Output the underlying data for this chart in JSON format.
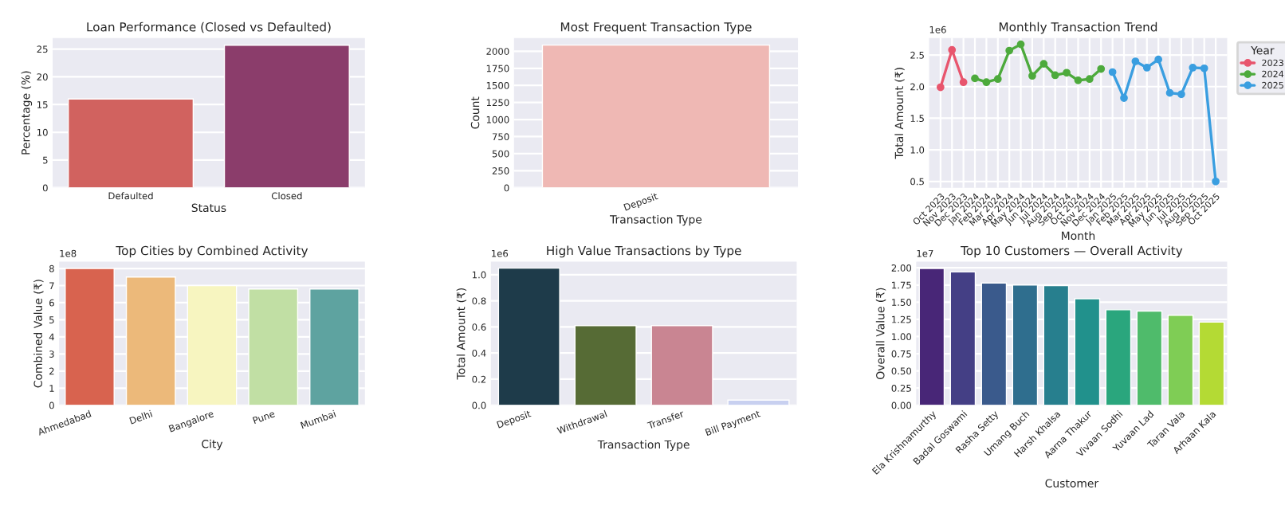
{
  "chart_data": [
    {
      "type": "bar",
      "title": "Loan Performance (Closed vs Defaulted)",
      "xlabel": "Status",
      "ylabel": "Percentage (%)",
      "categories": [
        "Defaulted",
        "Closed"
      ],
      "values": [
        16.0,
        25.7
      ],
      "colors": [
        "#d1625f",
        "#8b3d6b"
      ],
      "ylim": [
        0,
        27
      ],
      "yticks": [
        0,
        5,
        10,
        15,
        20,
        25
      ],
      "grid": "y"
    },
    {
      "type": "bar",
      "title": "Most Frequent Transaction Type",
      "xlabel": "Transaction Type",
      "ylabel": "Count",
      "categories": [
        "Deposit"
      ],
      "values": [
        2090
      ],
      "colors": [
        "#efb8b4"
      ],
      "ylim": [
        0,
        2195
      ],
      "yticks": [
        0,
        250,
        500,
        750,
        1000,
        1250,
        1500,
        1750,
        2000
      ],
      "grid": "y"
    },
    {
      "type": "line",
      "title": "Monthly Transaction Trend",
      "xlabel": "Month",
      "ylabel": "Total Amount (₹)",
      "annotations": [
        "1e6"
      ],
      "legend_title": "Year",
      "legend": "top right",
      "marker": "circle",
      "line_style": "solid",
      "grid": true,
      "categories": [
        "Oct 2023",
        "Nov 2023",
        "Dec 2023",
        "Jan 2024",
        "Feb 2024",
        "Mar 2024",
        "Apr 2024",
        "May 2024",
        "Jun 2024",
        "Jul 2024",
        "Aug 2024",
        "Sep 2024",
        "Oct 2024",
        "Nov 2024",
        "Dec 2024",
        "Jan 2025",
        "Feb 2025",
        "Mar 2025",
        "Apr 2025",
        "May 2025",
        "Jun 2025",
        "Jul 2025",
        "Aug 2025",
        "Sep 2025",
        "Oct 2025"
      ],
      "series": [
        {
          "name": "2023",
          "color": "#e8556d",
          "values": [
            1.99,
            2.58,
            2.07,
            null,
            null,
            null,
            null,
            null,
            null,
            null,
            null,
            null,
            null,
            null,
            null,
            null,
            null,
            null,
            null,
            null,
            null,
            null,
            null,
            null,
            null
          ]
        },
        {
          "name": "2024",
          "color": "#4daa3c",
          "values": [
            null,
            null,
            null,
            2.13,
            2.07,
            2.12,
            2.57,
            2.67,
            2.17,
            2.36,
            2.18,
            2.22,
            2.1,
            2.12,
            2.28,
            null,
            null,
            null,
            null,
            null,
            null,
            null,
            null,
            null,
            null
          ]
        },
        {
          "name": "2025",
          "color": "#3a9ee0",
          "values": [
            null,
            null,
            null,
            null,
            null,
            null,
            null,
            null,
            null,
            null,
            null,
            null,
            null,
            null,
            null,
            2.23,
            1.82,
            2.4,
            2.3,
            2.43,
            1.9,
            1.88,
            2.3,
            2.29,
            0.5
          ]
        }
      ],
      "ylim": [
        0.4,
        2.77
      ],
      "yticks": [
        {
          "value": 0.5,
          "label": "0.5"
        },
        {
          "value": 1.0,
          "label": "1.0"
        },
        {
          "value": 1.5,
          "label": "1.5"
        },
        {
          "value": 2.0,
          "label": "2.0"
        },
        {
          "value": 2.5,
          "label": "2.5"
        }
      ]
    },
    {
      "type": "bar",
      "title": "Top Cities by Combined Activity",
      "xlabel": "City",
      "ylabel": "Combined Value (₹)",
      "annotations": [
        "1e8"
      ],
      "categories": [
        "Ahmedabad",
        "Delhi",
        "Bangalore",
        "Pune",
        "Mumbai"
      ],
      "values": [
        8.0,
        7.5,
        7.0,
        6.8,
        6.8
      ],
      "colors": [
        "#d8634f",
        "#ecb97a",
        "#f7f5c0",
        "#c1dfa4",
        "#5ea3a0"
      ],
      "ylim": [
        0,
        8.4
      ],
      "yticks": [
        0,
        1,
        2,
        3,
        4,
        5,
        6,
        7,
        8
      ],
      "grid": "y"
    },
    {
      "type": "bar",
      "title": "High Value Transactions by Type",
      "xlabel": "Transaction Type",
      "ylabel": "Total Amount (₹)",
      "annotations": [
        "1e6"
      ],
      "categories": [
        "Deposit",
        "Withdrawal",
        "Transfer",
        "Bill Payment"
      ],
      "values": [
        1.05,
        0.61,
        0.61,
        0.04
      ],
      "colors": [
        "#1e3b4a",
        "#566b35",
        "#c98592",
        "#c8d0f0"
      ],
      "ylim": [
        0,
        1.1
      ],
      "yticks": [
        {
          "value": 0,
          "label": "0.0"
        },
        {
          "value": 0.2,
          "label": "0.2"
        },
        {
          "value": 0.4,
          "label": "0.4"
        },
        {
          "value": 0.6,
          "label": "0.6"
        },
        {
          "value": 0.8,
          "label": "0.8"
        },
        {
          "value": 1.0,
          "label": "1.0"
        }
      ],
      "grid": "y"
    },
    {
      "type": "bar",
      "title": "Top 10 Customers — Overall Activity",
      "xlabel": "Customer",
      "ylabel": "Overall Value (₹)",
      "annotations": [
        "1e7"
      ],
      "categories": [
        "Ela Krishnamurthy",
        "Badal Goswami",
        "Rasha Setty",
        "Umang Buch",
        "Harsh Khalsa",
        "Aarna Thakur",
        "Vivaan Sodhi",
        "Yuvaan Lad",
        "Taran Vala",
        "Arhaan Kala"
      ],
      "values": [
        1.99,
        1.94,
        1.78,
        1.75,
        1.74,
        1.55,
        1.39,
        1.37,
        1.31,
        1.21
      ],
      "colors": [
        "#482677",
        "#443f85",
        "#3a5a8c",
        "#2f6e8e",
        "#277f8e",
        "#21918c",
        "#2aa67d",
        "#4fbb6b",
        "#7fcd55",
        "#b4da34"
      ],
      "ylim": [
        0,
        2.09
      ],
      "yticks": [
        {
          "value": 0,
          "label": "0.00"
        },
        {
          "value": 0.25,
          "label": "0.25"
        },
        {
          "value": 0.5,
          "label": "0.50"
        },
        {
          "value": 0.75,
          "label": "0.75"
        },
        {
          "value": 1.0,
          "label": "1.00"
        },
        {
          "value": 1.25,
          "label": "1.25"
        },
        {
          "value": 1.5,
          "label": "1.50"
        },
        {
          "value": 1.75,
          "label": "1.75"
        },
        {
          "value": 2.0,
          "label": "2.00"
        }
      ],
      "grid": "y"
    }
  ]
}
